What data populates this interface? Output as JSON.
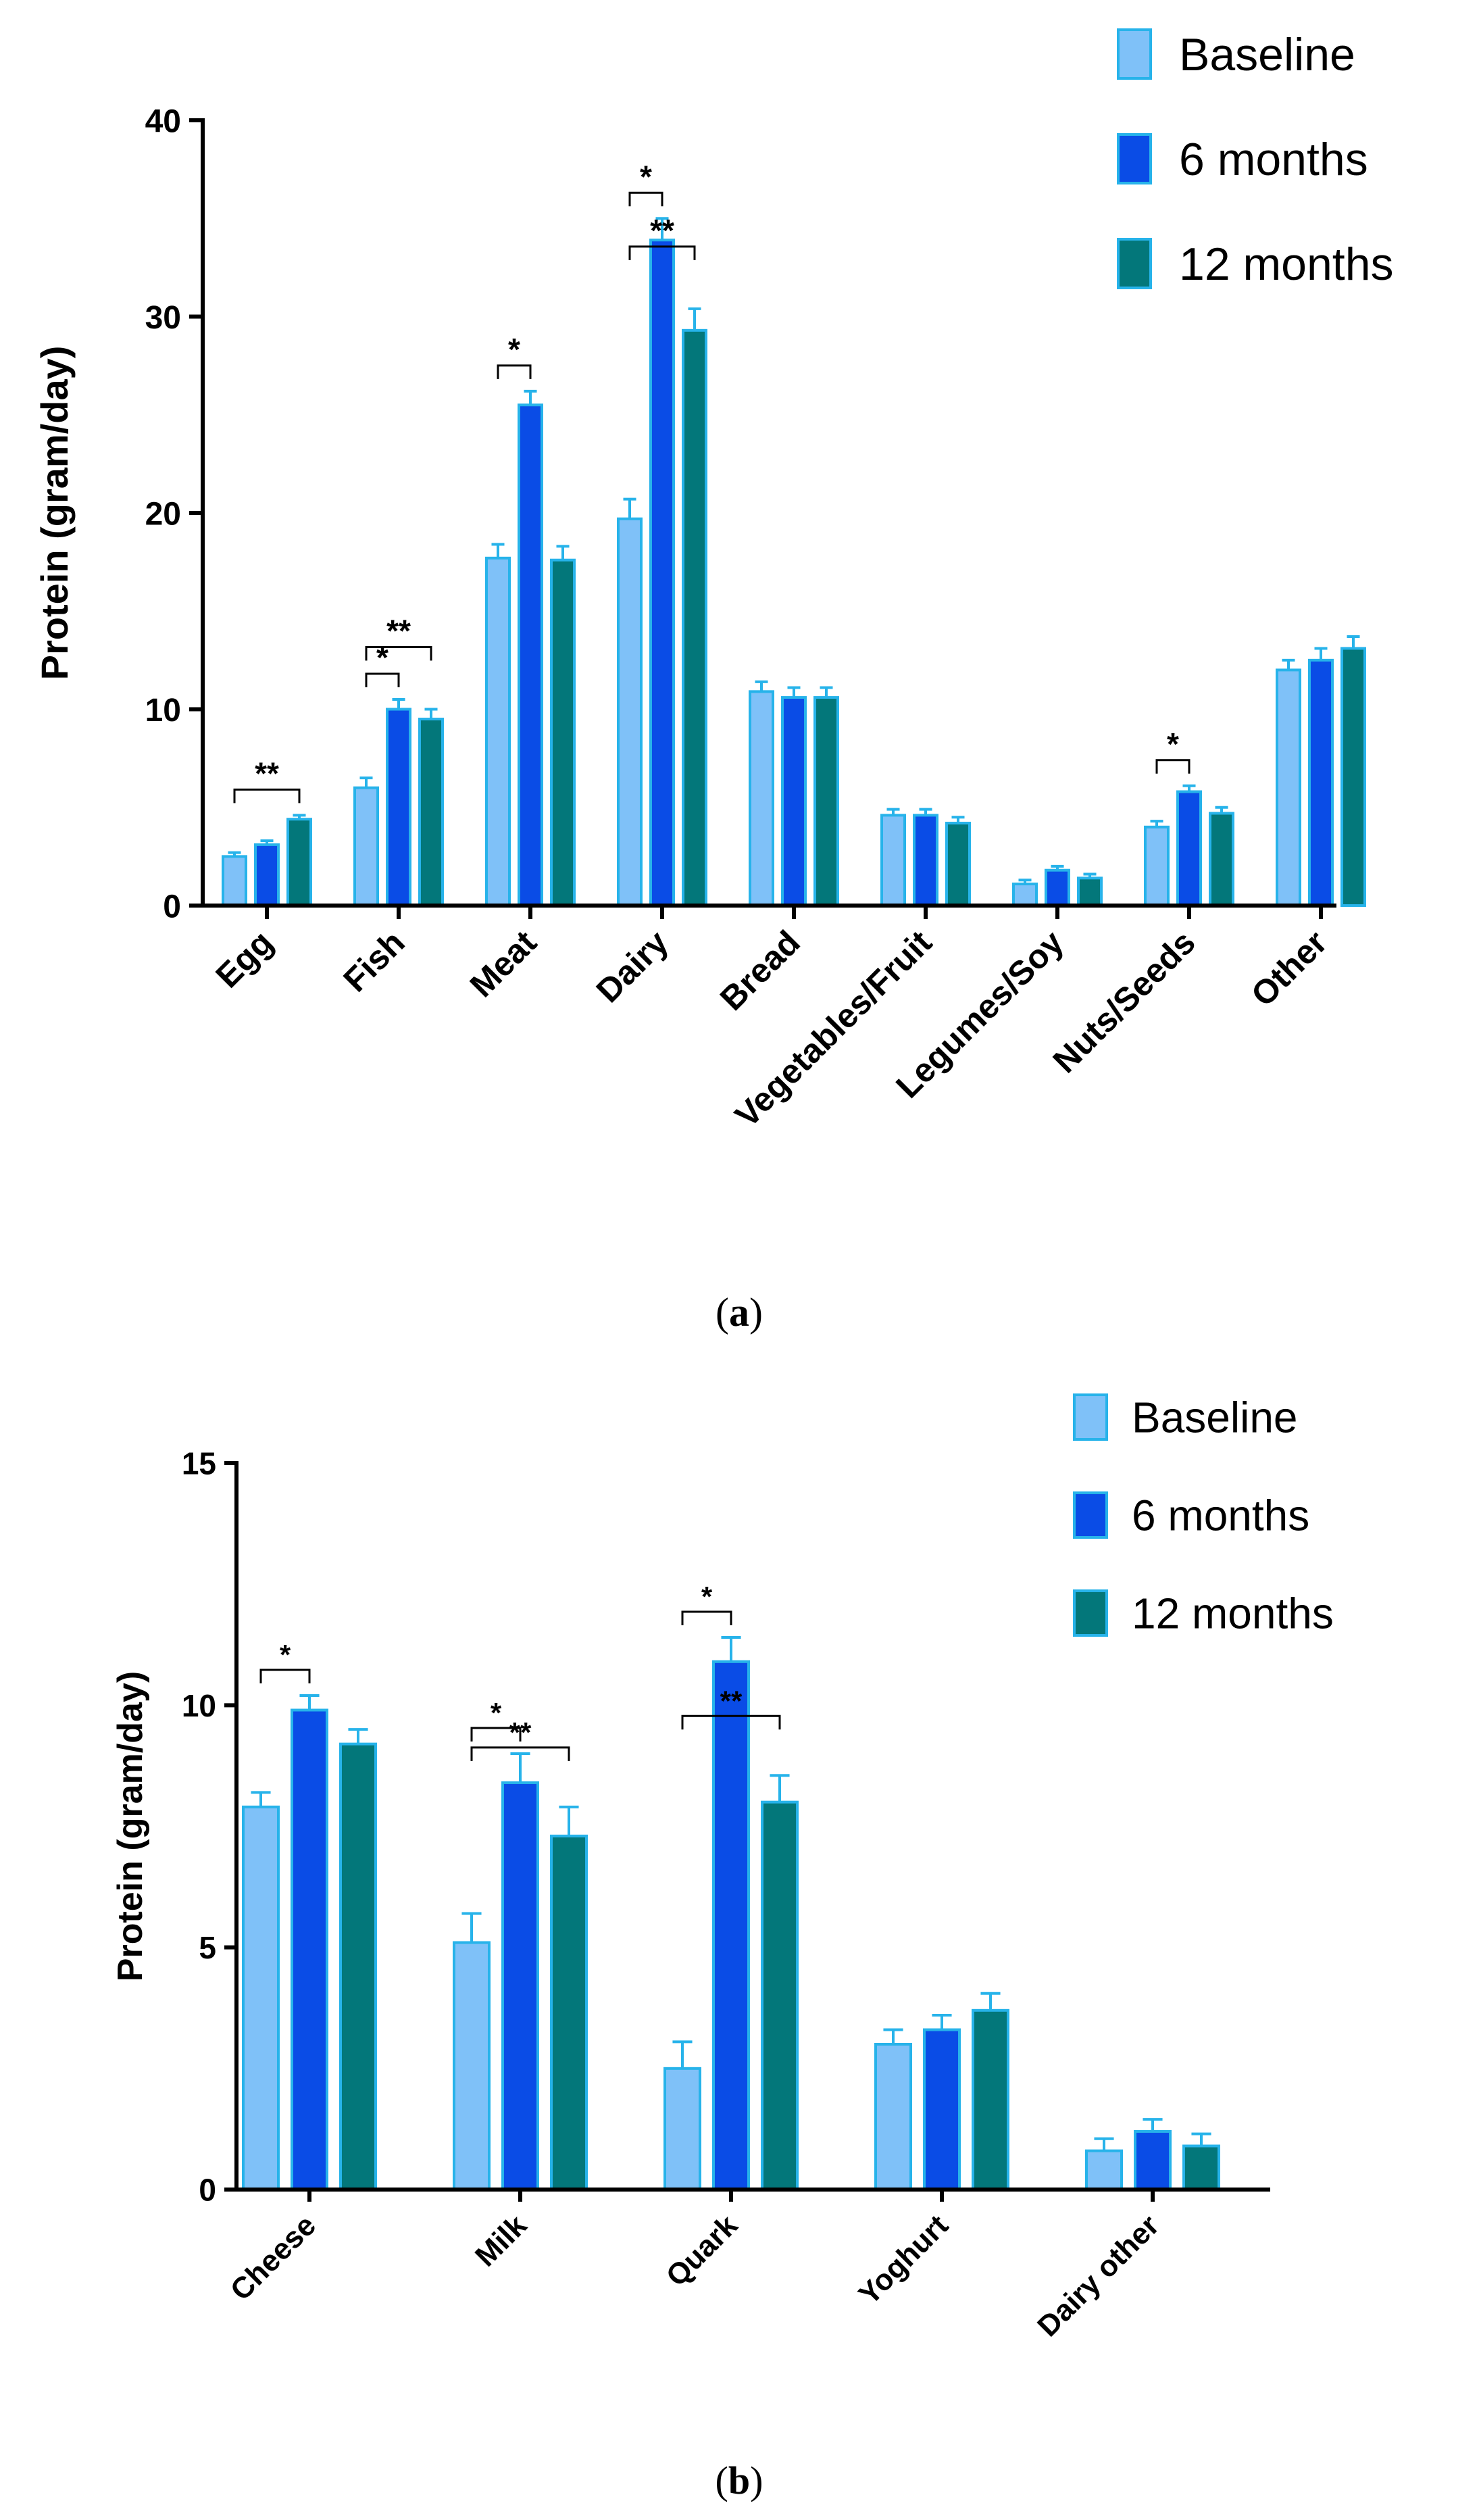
{
  "colors": {
    "Baseline": "#7fc1f8",
    "6 months": "#0a4ce6",
    "12 months": "#03777a",
    "bar_stroke": "#27b3ea",
    "axis": "#000000"
  },
  "chart_data": [
    {
      "type": "bar",
      "id": "a",
      "caption_text": "a",
      "ylabel": "Protein (gram/day)",
      "xlabel": "",
      "ylim": [
        0,
        40
      ],
      "yticks": [
        0,
        10,
        20,
        30,
        40
      ],
      "legend_position": "top-right",
      "categories": [
        "Egg",
        "Fish",
        "Meat",
        "Dairy",
        "Bread",
        "Vegetables/Fruit",
        "Legumes/Soy",
        "Nuts/Seeds",
        "Other"
      ],
      "series": [
        {
          "name": "Baseline",
          "values": [
            2.5,
            6.0,
            17.7,
            19.7,
            10.9,
            4.6,
            1.1,
            4.0,
            12.0
          ],
          "errors": [
            0.2,
            0.5,
            0.7,
            1.0,
            0.5,
            0.3,
            0.2,
            0.3,
            0.5
          ]
        },
        {
          "name": "6 months",
          "values": [
            3.1,
            10.0,
            25.5,
            33.9,
            10.6,
            4.6,
            1.8,
            5.8,
            12.5
          ],
          "errors": [
            0.2,
            0.5,
            0.7,
            1.1,
            0.5,
            0.3,
            0.2,
            0.3,
            0.6
          ]
        },
        {
          "name": "12 months",
          "values": [
            4.4,
            9.5,
            17.6,
            29.3,
            10.6,
            4.2,
            1.4,
            4.7,
            13.1
          ],
          "errors": [
            0.2,
            0.5,
            0.7,
            1.1,
            0.5,
            0.3,
            0.2,
            0.3,
            0.6
          ]
        }
      ],
      "annotations": [
        {
          "label": "**",
          "category": 0,
          "from": "Baseline",
          "to": "12 months",
          "level": 0
        },
        {
          "label": "*",
          "category": 1,
          "from": "Baseline",
          "to": "6 months",
          "level": 0
        },
        {
          "label": "**",
          "category": 1,
          "from": "Baseline",
          "to": "12 months",
          "level": 1
        },
        {
          "label": "*",
          "category": 2,
          "from": "Baseline",
          "to": "6 months",
          "level": 0
        },
        {
          "label": "*",
          "category": 3,
          "from": "Baseline",
          "to": "6 months",
          "level": 0
        },
        {
          "label": "**",
          "category": 3,
          "from": "Baseline",
          "to": "12 months",
          "level": 1
        },
        {
          "label": "*",
          "category": 7,
          "from": "Baseline",
          "to": "6 months",
          "level": 0
        }
      ]
    },
    {
      "type": "bar",
      "id": "b",
      "caption_text": "b",
      "ylabel": "Protein (gram/day)",
      "xlabel": "",
      "ylim": [
        0,
        15
      ],
      "yticks": [
        0,
        5,
        10,
        15
      ],
      "legend_position": "top-right",
      "categories": [
        "Cheese",
        "Milk",
        "Quark",
        "Yoghurt",
        "Dairy other"
      ],
      "series": [
        {
          "name": "Baseline",
          "values": [
            7.9,
            5.1,
            2.5,
            3.0,
            0.8
          ],
          "errors": [
            0.3,
            0.6,
            0.55,
            0.3,
            0.25
          ]
        },
        {
          "name": "6 months",
          "values": [
            9.9,
            8.4,
            10.9,
            3.3,
            1.2
          ],
          "errors": [
            0.3,
            0.6,
            0.5,
            0.3,
            0.25
          ]
        },
        {
          "name": "12 months",
          "values": [
            9.2,
            7.3,
            8.0,
            3.7,
            0.9
          ],
          "errors": [
            0.3,
            0.6,
            0.55,
            0.35,
            0.25
          ]
        }
      ],
      "annotations": [
        {
          "label": "*",
          "category": 0,
          "from": "Baseline",
          "to": "6 months",
          "level": 0
        },
        {
          "label": "*",
          "category": 1,
          "from": "Baseline",
          "to": "6 months",
          "level": 0
        },
        {
          "label": "**",
          "category": 1,
          "from": "Baseline",
          "to": "12 months",
          "level": 1
        },
        {
          "label": "*",
          "category": 2,
          "from": "Baseline",
          "to": "6 months",
          "level": 0
        },
        {
          "label": "**",
          "category": 2,
          "from": "Baseline",
          "to": "12 months",
          "level": 1
        }
      ]
    }
  ]
}
